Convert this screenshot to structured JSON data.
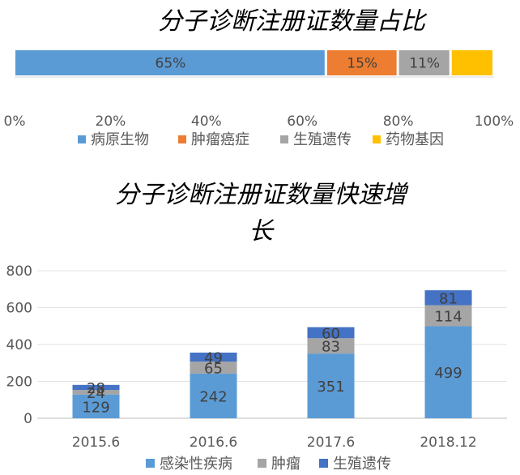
{
  "chart_data": [
    {
      "type": "bar",
      "orientation": "horizontal-100%-stacked",
      "title": "分子诊断注册证数量占比",
      "xlim": [
        0,
        100
      ],
      "x_ticks": [
        "0%",
        "20%",
        "40%",
        "60%",
        "80%",
        "100%"
      ],
      "legend_position": "bottom",
      "series": [
        {
          "name": "病原生物",
          "value": 65,
          "label": "65%",
          "color": "#5B9BD5"
        },
        {
          "name": "肿瘤癌症",
          "value": 15,
          "label": "15%",
          "color": "#ED7D31"
        },
        {
          "name": "生殖遗传",
          "value": 11,
          "label": "11%",
          "color": "#A5A5A5"
        },
        {
          "name": "药物基因",
          "value": 9,
          "label": "",
          "color": "#FFC000"
        }
      ]
    },
    {
      "type": "bar",
      "orientation": "vertical-stacked",
      "title_lines": [
        "分子诊断注册证数量快速增",
        "长"
      ],
      "ylim": [
        0,
        800
      ],
      "y_ticks": [
        "0",
        "200",
        "400",
        "600",
        "800"
      ],
      "categories": [
        "2015.6",
        "2016.6",
        "2017.6",
        "2018.12"
      ],
      "legend_position": "bottom",
      "gridlines": true,
      "series": [
        {
          "name": "感染性疾病",
          "values": [
            129,
            242,
            351,
            499
          ],
          "color": "#5B9BD5"
        },
        {
          "name": "肿瘤",
          "values": [
            24,
            65,
            83,
            114
          ],
          "color": "#A5A5A5"
        },
        {
          "name": "生殖遗传",
          "values": [
            28,
            49,
            60,
            81
          ],
          "color": "#4472C4"
        }
      ]
    }
  ]
}
